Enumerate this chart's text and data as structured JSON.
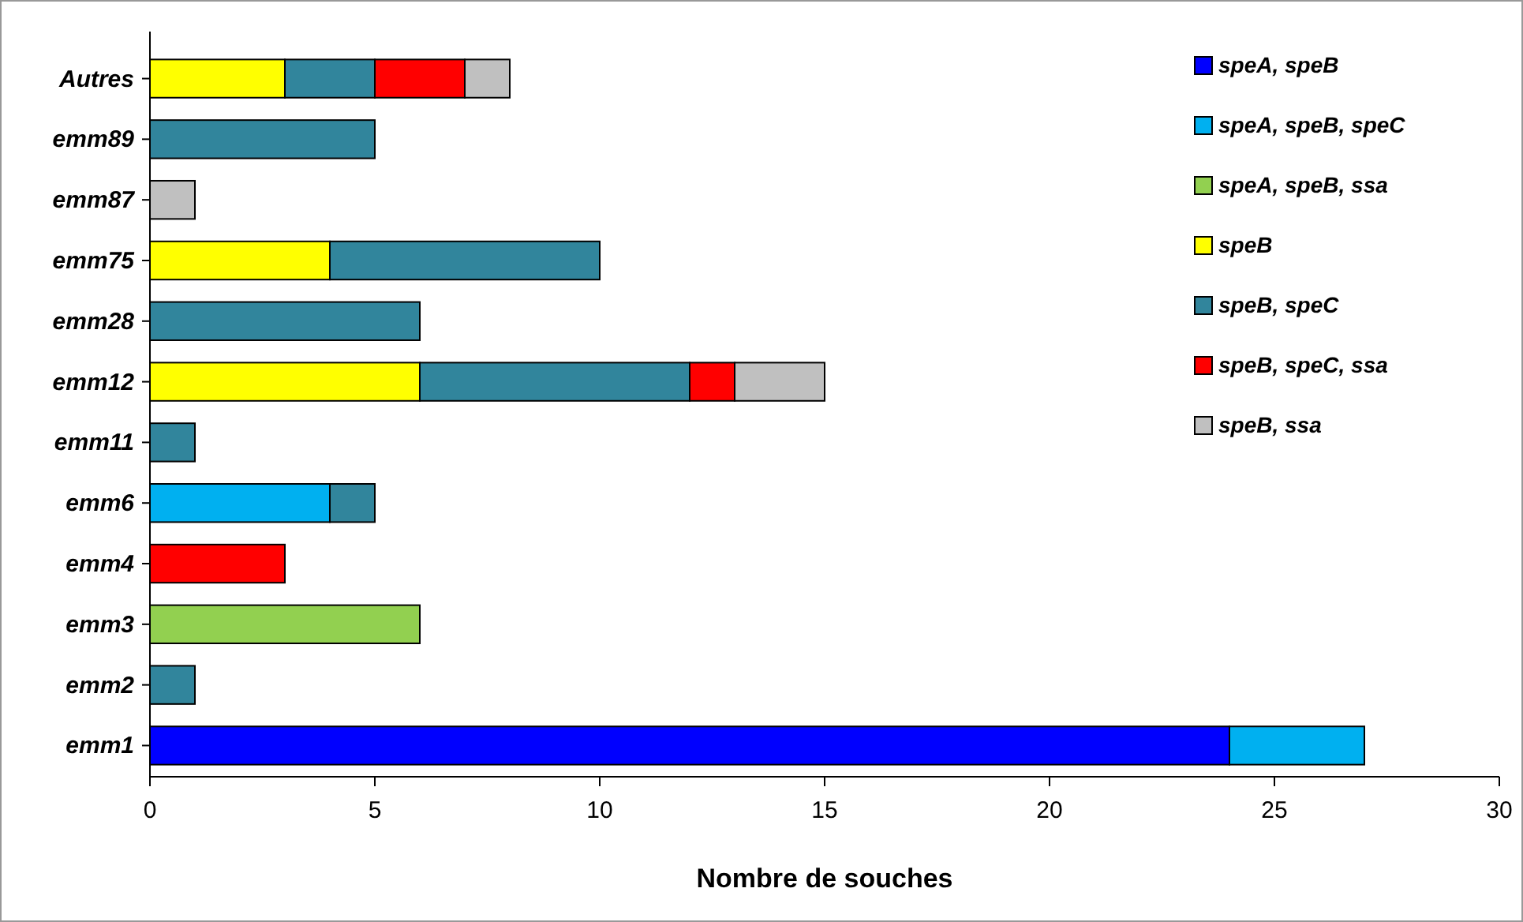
{
  "chart_data": {
    "type": "bar",
    "orientation": "horizontal",
    "stacked": true,
    "xlabel": "Nombre de souches",
    "categories": [
      "Autres",
      "emm89",
      "emm87",
      "emm75",
      "emm28",
      "emm12",
      "emm11",
      "emm6",
      "emm4",
      "emm3",
      "emm2",
      "emm1"
    ],
    "series": [
      {
        "name": "speA, speB",
        "color": "#0000ff",
        "values": [
          null,
          null,
          null,
          null,
          null,
          null,
          null,
          null,
          null,
          null,
          null,
          24
        ]
      },
      {
        "name": "speA, speB, speC",
        "color": "#00b0f0",
        "values": [
          null,
          null,
          null,
          null,
          null,
          null,
          null,
          4,
          null,
          null,
          null,
          3
        ]
      },
      {
        "name": "speA, speB, ssa",
        "color": "#92d050",
        "values": [
          null,
          null,
          null,
          null,
          null,
          null,
          null,
          null,
          null,
          6,
          null,
          null
        ]
      },
      {
        "name": "speB",
        "color": "#ffff00",
        "values": [
          3,
          null,
          null,
          4,
          null,
          6,
          null,
          null,
          null,
          null,
          null,
          null
        ]
      },
      {
        "name": "speB, speC",
        "color": "#31859c",
        "values": [
          2,
          5,
          null,
          6,
          6,
          6,
          1,
          1,
          null,
          null,
          1,
          null
        ]
      },
      {
        "name": "speB, speC, ssa",
        "color": "#ff0000",
        "values": [
          2,
          null,
          null,
          null,
          null,
          1,
          null,
          null,
          3,
          null,
          null,
          null
        ]
      },
      {
        "name": "speB, ssa",
        "color": "#c0c0c0",
        "values": [
          1,
          null,
          1,
          null,
          null,
          2,
          null,
          null,
          null,
          null,
          null,
          null
        ]
      }
    ],
    "xlim": [
      0,
      30
    ],
    "xticks": [
      0,
      5,
      10,
      15,
      20,
      25,
      30
    ],
    "grid": false,
    "legend": "top right"
  }
}
